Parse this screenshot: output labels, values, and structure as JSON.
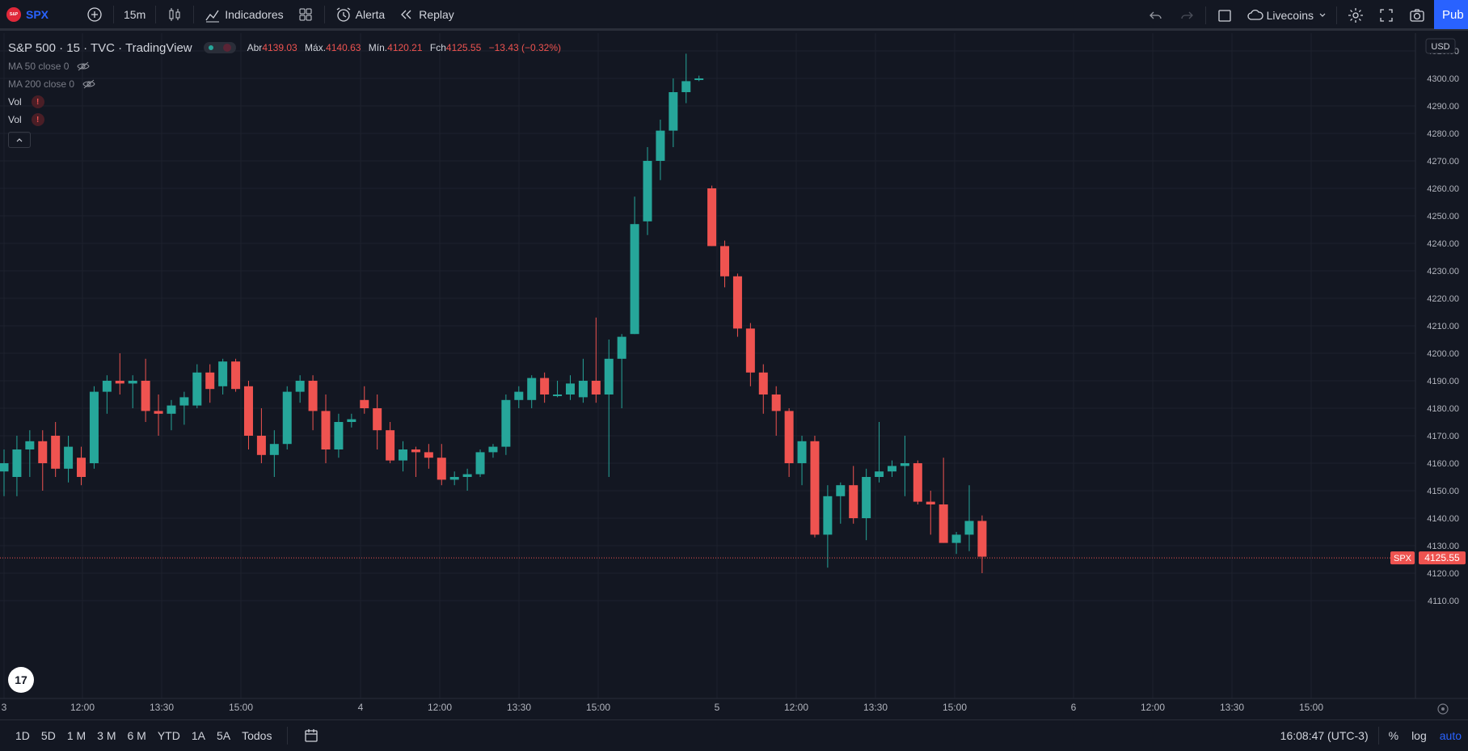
{
  "topbar": {
    "symbol": "SPX",
    "interval": "15m",
    "indicators_label": "Indicadores",
    "alert_label": "Alerta",
    "replay_label": "Replay",
    "layout_name": "Livecoins",
    "publish_label": "Pub"
  },
  "legend": {
    "title": "S&P 500 · 15 · TVC · TradingView",
    "open_label": "Abr",
    "open": "4139.03",
    "high_label": "Máx.",
    "high": "4140.63",
    "low_label": "Mín.",
    "low": "4120.21",
    "close_label": "Fch",
    "close": "4125.55",
    "change": "−13.43 (−0.32%)",
    "indicators": [
      "MA 50 close 0",
      "MA 200 close 0"
    ],
    "vol_labels": [
      "Vol",
      "Vol"
    ]
  },
  "price_axis": {
    "currency": "USD",
    "ticks": [
      "4310.00",
      "4300.00",
      "4290.00",
      "4280.00",
      "4270.00",
      "4260.00",
      "4250.00",
      "4240.00",
      "4230.00",
      "4220.00",
      "4210.00",
      "4200.00",
      "4190.00",
      "4180.00",
      "4170.00",
      "4160.00",
      "4150.00",
      "4140.00",
      "4130.00",
      "4120.00",
      "4110.00"
    ],
    "last_symbol": "SPX",
    "last_price": "4125.55"
  },
  "time_axis": {
    "labels": [
      "3",
      "12:00",
      "13:30",
      "15:00",
      "4",
      "12:00",
      "13:30",
      "15:00",
      "5",
      "12:00",
      "13:30",
      "15:00",
      "6",
      "12:00",
      "13:30",
      "15:00"
    ]
  },
  "bottombar": {
    "ranges": [
      "1D",
      "5D",
      "1 M",
      "3 M",
      "6 M",
      "YTD",
      "1A",
      "5A",
      "Todos"
    ],
    "clock": "16:08:47 (UTC-3)",
    "percent": "%",
    "log": "log",
    "auto": "auto"
  },
  "colors": {
    "up": "#26a69a",
    "down": "#ef5350",
    "accent": "#2962ff",
    "background": "#131722"
  },
  "chart_data": {
    "type": "candlestick",
    "symbol": "SPX",
    "ylim": [
      4110,
      4310
    ],
    "candles": [
      [
        4157,
        4165,
        4148,
        4160
      ],
      [
        4155,
        4170,
        4148,
        4165
      ],
      [
        4165,
        4172,
        4155,
        4168
      ],
      [
        4168,
        4172,
        4150,
        4160
      ],
      [
        4170,
        4175,
        4155,
        4158
      ],
      [
        4158,
        4170,
        4153,
        4166
      ],
      [
        4162,
        4166,
        4152,
        4155
      ],
      [
        4160,
        4188,
        4158,
        4186
      ],
      [
        4186,
        4192,
        4178,
        4190
      ],
      [
        4190,
        4200,
        4185,
        4189
      ],
      [
        4189,
        4192,
        4180,
        4190
      ],
      [
        4190,
        4198,
        4175,
        4179
      ],
      [
        4179,
        4185,
        4170,
        4178
      ],
      [
        4178,
        4183,
        4172,
        4181
      ],
      [
        4181,
        4186,
        4174,
        4184
      ],
      [
        4181,
        4196,
        4180,
        4193
      ],
      [
        4193,
        4196,
        4182,
        4187
      ],
      [
        4188,
        4198,
        4185,
        4197
      ],
      [
        4197,
        4198,
        4186,
        4187
      ],
      [
        4188,
        4190,
        4165,
        4170
      ],
      [
        4170,
        4180,
        4160,
        4163
      ],
      [
        4163,
        4172,
        4155,
        4167
      ],
      [
        4167,
        4188,
        4165,
        4186
      ],
      [
        4186,
        4192,
        4182,
        4190
      ],
      [
        4190,
        4192,
        4172,
        4179
      ],
      [
        4179,
        4185,
        4160,
        4165
      ],
      [
        4165,
        4178,
        4162,
        4175
      ],
      [
        4175,
        4178,
        4173,
        4176
      ],
      [
        4183,
        4188,
        4178,
        4180
      ],
      [
        4180,
        4185,
        4165,
        4172
      ],
      [
        4172,
        4175,
        4160,
        4161
      ],
      [
        4161,
        4168,
        4157,
        4165
      ],
      [
        4165,
        4166,
        4155,
        4164
      ],
      [
        4164,
        4167,
        4158,
        4162
      ],
      [
        4162,
        4167,
        4152,
        4154
      ],
      [
        4154,
        4157,
        4152,
        4155
      ],
      [
        4155,
        4158,
        4150,
        4156
      ],
      [
        4156,
        4165,
        4155,
        4164
      ],
      [
        4164,
        4167,
        4162,
        4166
      ],
      [
        4166,
        4185,
        4163,
        4183
      ],
      [
        4183,
        4188,
        4180,
        4186
      ],
      [
        4183,
        4192,
        4180,
        4191
      ],
      [
        4191,
        4193,
        4182,
        4185
      ],
      [
        4185,
        4190,
        4184,
        4185
      ],
      [
        4185,
        4192,
        4183,
        4189
      ],
      [
        4184,
        4198,
        4182,
        4190
      ],
      [
        4190,
        4213,
        4182,
        4185
      ],
      [
        4185,
        4205,
        4155,
        4198
      ],
      [
        4198,
        4207,
        4180,
        4206
      ],
      [
        4207,
        4257,
        4207,
        4247
      ],
      [
        4248,
        4275,
        4243,
        4270
      ],
      [
        4270,
        4285,
        4263,
        4281
      ],
      [
        4281,
        4300,
        4275,
        4295
      ],
      [
        4295,
        4309,
        4291,
        4299
      ],
      [
        4300,
        4301,
        4299,
        4300
      ],
      [
        4260,
        4261,
        4239,
        4239
      ],
      [
        4239,
        4241,
        4224,
        4228
      ],
      [
        4228,
        4229,
        4206,
        4209
      ],
      [
        4209,
        4211,
        4188,
        4193
      ],
      [
        4193,
        4196,
        4178,
        4185
      ],
      [
        4185,
        4188,
        4170,
        4179
      ],
      [
        4179,
        4180,
        4155,
        4160
      ],
      [
        4160,
        4170,
        4152,
        4168
      ],
      [
        4168,
        4170,
        4133,
        4134
      ],
      [
        4134,
        4152,
        4122,
        4148
      ],
      [
        4148,
        4153,
        4138,
        4152
      ],
      [
        4152,
        4159,
        4138,
        4140
      ],
      [
        4140,
        4158,
        4132,
        4155
      ],
      [
        4155,
        4175,
        4153,
        4157
      ],
      [
        4157,
        4161,
        4155,
        4159
      ],
      [
        4159,
        4170,
        4148,
        4160
      ],
      [
        4160,
        4161,
        4145,
        4146
      ],
      [
        4146,
        4150,
        4134,
        4145
      ],
      [
        4145,
        4162,
        4131,
        4131
      ],
      [
        4131,
        4135,
        4127,
        4134
      ],
      [
        4134,
        4152,
        4128,
        4139
      ],
      [
        4139,
        4141,
        4120,
        4126
      ]
    ]
  }
}
